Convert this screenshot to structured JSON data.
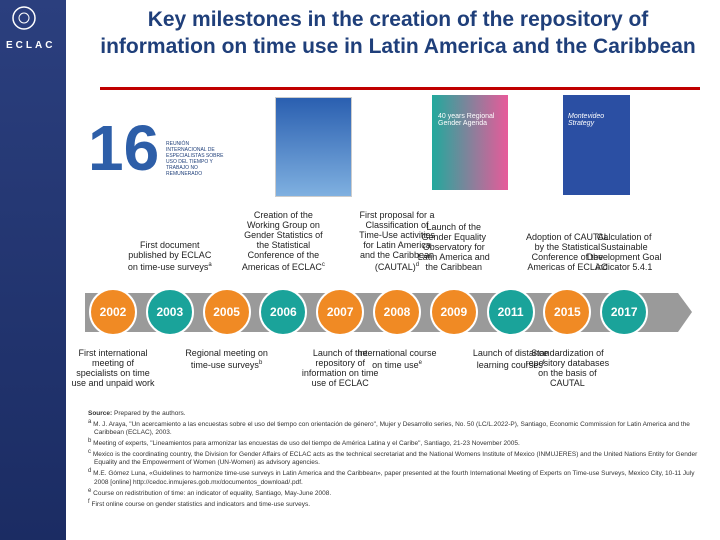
{
  "sidebar": {
    "logo": "ECLAC"
  },
  "header": {
    "title": "Key milestones in the creation of the repository of information on time use in Latin America and the Caribbean"
  },
  "covers": [
    {
      "number": "16",
      "text": "Reunión internacional de especialistas sobre uso del tiempo y trabajo no remunerado"
    },
    {
      "text": "40 years Regional Gender Agenda"
    },
    {
      "text": "Montevideo Strategy"
    }
  ],
  "timeline": {
    "milestones": [
      {
        "year": "2002",
        "color": "#f08a24",
        "below": "First international meeting of specialists on time use and unpaid work"
      },
      {
        "year": "2003",
        "color": "#1aa39a",
        "above": "First document published by ECLAC on time-use surveys",
        "above_note": "a"
      },
      {
        "year": "2005",
        "color": "#f08a24",
        "below": "Regional meeting on time-use surveys",
        "below_note": "b"
      },
      {
        "year": "2006",
        "color": "#1aa39a",
        "above": "Creation of the Working Group on Gender Statistics of the Statistical Conference of the Americas of ECLAC",
        "above_note": "c"
      },
      {
        "year": "2007",
        "color": "#f08a24",
        "below": "Launch of the repository of information on time use of ECLAC"
      },
      {
        "year": "2008",
        "color": "#f08a24",
        "above": "First proposal for a Classification of Time-Use activities for Latin America and the Caribbean (CAUTAL)",
        "above_note": "d",
        "below": "International course on time use",
        "below_note": "e"
      },
      {
        "year": "2009",
        "color": "#f08a24",
        "above": "Launch of the Gender Equality Observatory for Latin America and the Caribbean"
      },
      {
        "year": "2011",
        "color": "#1aa39a",
        "below": "Launch of distance learning courses",
        "below_note": "f"
      },
      {
        "year": "2015",
        "color": "#f08a24",
        "above": "Adoption of CAUTAL by the Statistical Conference of the Americas of ECLAC",
        "below": "Standardization of repository databases on the basis of CAUTAL"
      },
      {
        "year": "2017",
        "color": "#1aa39a",
        "above": "Calculation of Sustainable Development Goal indicator 5.4.1"
      }
    ]
  },
  "source": {
    "label": "Source:",
    "text": "Prepared by the authors.",
    "notes": [
      {
        "marker": "a",
        "text": "M. J. Araya, \"Un acercamiento a las encuestas sobre el uso del tiempo con orientación de género\", Mujer y Desarrollo series, No. 50 (LC/L.2022-P), Santiago, Economic Commission for Latin America and the Caribbean (ECLAC), 2003."
      },
      {
        "marker": "b",
        "text": "Meeting of experts, \"Lineamientos para armonizar las encuestas de uso del tiempo de América Latina y el Caribe\", Santiago, 21-23 November 2005."
      },
      {
        "marker": "c",
        "text": "Mexico is the coordinating country, the Division for Gender Affairs of ECLAC acts as the technical secretariat and the National Womens Institute of Mexico (INMUJERES) and the United Nations Entity for Gender Equality and the Empowerment of Women (UN-Women) as advisory agencies."
      },
      {
        "marker": "d",
        "text": "M.E. Gómez Luna, «Guidelines to harmonize time-use surveys in Latin America and the Caribbean», paper presented at the fourth International Meeting of Experts on Time-use Surveys, Mexico City, 10-11 July 2008 [online] http://cedoc.inmujeres.gob.mx/documentos_download/.pdf."
      },
      {
        "marker": "e",
        "text": "Course on redistribution of time: an indicator of equality, Santiago, May-June 2008."
      },
      {
        "marker": "f",
        "text": "First online course on gender statistics and indicators and time-use surveys."
      }
    ]
  }
}
